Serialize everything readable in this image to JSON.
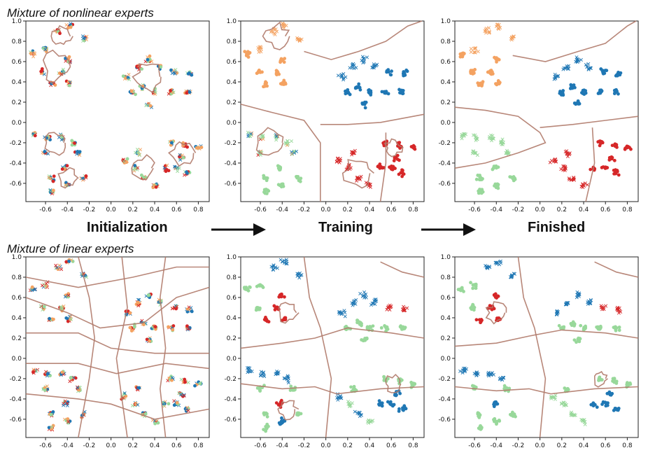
{
  "titles": {
    "top": "Mixture of nonlinear experts",
    "bottom": "Mixture of linear experts"
  },
  "stages": [
    "Initialization",
    "Training",
    "Finished"
  ],
  "colors": {
    "blue": "#1f77b4",
    "red": "#d62728",
    "orange": "#f4a261",
    "green": "#98d89a",
    "boundary": "#b07a6a"
  },
  "axes": {
    "xlim": [
      -0.78,
      0.9
    ],
    "ylim": [
      -0.78,
      1.0
    ],
    "xticks": [
      "-0.6",
      "-0.4",
      "-0.2",
      "0.0",
      "0.2",
      "0.4",
      "0.6",
      "0.8"
    ],
    "xtick_values": [
      -0.6,
      -0.4,
      -0.2,
      0.0,
      0.2,
      0.4,
      0.6,
      0.8
    ],
    "yticks": [
      "1.0",
      "0.8",
      "0.6",
      "0.4",
      "0.2",
      "0.0",
      "-0.2",
      "-0.4",
      "-0.6"
    ],
    "ytick_values": [
      1.0,
      0.8,
      0.6,
      0.4,
      0.2,
      0.0,
      -0.2,
      -0.4,
      -0.6
    ]
  },
  "chart_data": [
    {
      "type": "scatter",
      "panel": "nonlinear-initialization"
    },
    {
      "type": "scatter",
      "panel": "nonlinear-training"
    },
    {
      "type": "scatter",
      "panel": "nonlinear-finished"
    },
    {
      "type": "scatter",
      "panel": "linear-initialization"
    },
    {
      "type": "scatter",
      "panel": "linear-training"
    },
    {
      "type": "scatter",
      "panel": "linear-finished"
    }
  ]
}
